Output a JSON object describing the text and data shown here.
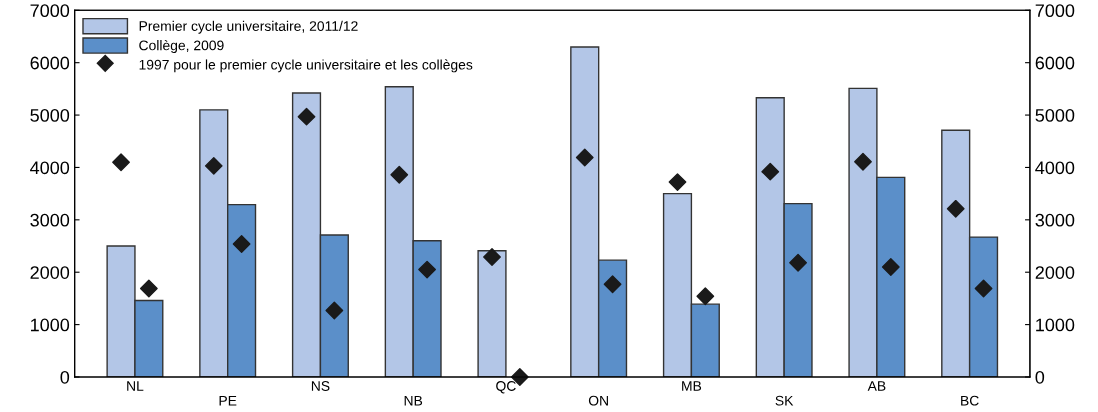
{
  "chart_data": {
    "type": "bar",
    "categories": [
      "NL",
      "PE",
      "NS",
      "NB",
      "QC",
      "ON",
      "MB",
      "SK",
      "AB",
      "BC"
    ],
    "series": [
      {
        "name": "Premier cycle universitaire, 2011/12",
        "color": "#b3c6e7",
        "values": [
          2500,
          5100,
          5420,
          5540,
          2410,
          6300,
          3500,
          5330,
          5510,
          4710
        ]
      },
      {
        "name": "Collège, 2009",
        "color": "#5b8fc9",
        "values": [
          1460,
          3290,
          2710,
          2600,
          null,
          2230,
          1390,
          3310,
          3810,
          2670
        ]
      },
      {
        "name": "1997 pour le premier cycle universitaire et les collèges",
        "type": "scatter",
        "color": "#1a1a1a",
        "values": [
          4100,
          4030,
          4970,
          3860,
          2290,
          4190,
          3720,
          3920,
          4110,
          3210
        ]
      },
      {
        "type": "scatter",
        "color": "#1a1a1a",
        "values": [
          1690,
          2540,
          1270,
          2050,
          0,
          1770,
          1540,
          2180,
          2100,
          1690
        ]
      }
    ],
    "ylim": [
      0,
      7000
    ],
    "yticks": [
      0,
      1000,
      2000,
      3000,
      4000,
      5000,
      6000,
      7000
    ],
    "y2lim": [
      0,
      7000
    ],
    "y2ticks": [
      0,
      1000,
      2000,
      3000,
      4000,
      5000,
      6000,
      7000
    ],
    "marker": "diamond",
    "grid": false,
    "legend": "top left"
  }
}
